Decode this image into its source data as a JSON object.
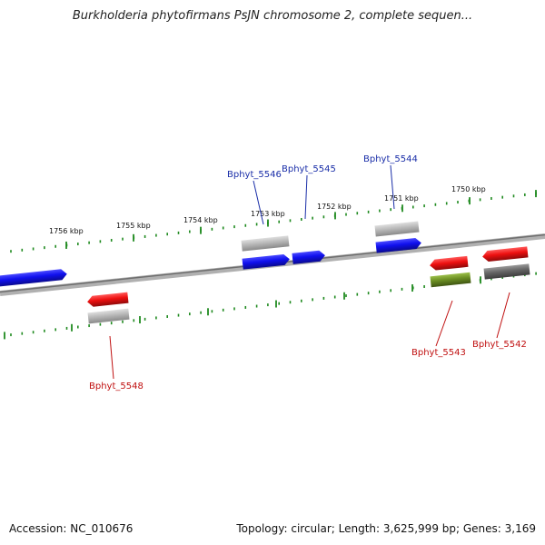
{
  "title": "Burkholderia phytofirmans PsJN chromosome 2, complete sequen...",
  "footer": {
    "accession": "Accession: NC_010676",
    "summary": "Topology: circular; Length: 3,625,999 bp; Genes: 3,169"
  },
  "colors": {
    "backbone": "#888888",
    "tick": "#1f8a1f",
    "forward_gene": "#1010ee",
    "reverse_gene": "#ee1010",
    "pseudo_gray": "#b8b8b8",
    "dark_gray": "#666666",
    "olive": "#6b8e23",
    "label_blue": "#1a2ea8",
    "label_red": "#c01010"
  },
  "ticks": [
    {
      "label": "1756 kbp",
      "kbp": 1756
    },
    {
      "label": "1755 kbp",
      "kbp": 1755
    },
    {
      "label": "1754 kbp",
      "kbp": 1754
    },
    {
      "label": "1753 kbp",
      "kbp": 1753
    },
    {
      "label": "1752 kbp",
      "kbp": 1752
    },
    {
      "label": "1751 kbp",
      "kbp": 1751
    },
    {
      "label": "1750 kbp",
      "kbp": 1750
    }
  ],
  "genes": [
    {
      "id": "Bphyt_5546",
      "label": "Bphyt_5546",
      "strand": "+"
    },
    {
      "id": "Bphyt_5545",
      "label": "Bphyt_5545",
      "strand": "+"
    },
    {
      "id": "Bphyt_5544",
      "label": "Bphyt_5544",
      "strand": "+"
    },
    {
      "id": "Bphyt_5548",
      "label": "Bphyt_5548",
      "strand": "-"
    },
    {
      "id": "Bphyt_5543",
      "label": "Bphyt_5543",
      "strand": "-"
    },
    {
      "id": "Bphyt_5542",
      "label": "Bphyt_5542",
      "strand": "-"
    }
  ]
}
